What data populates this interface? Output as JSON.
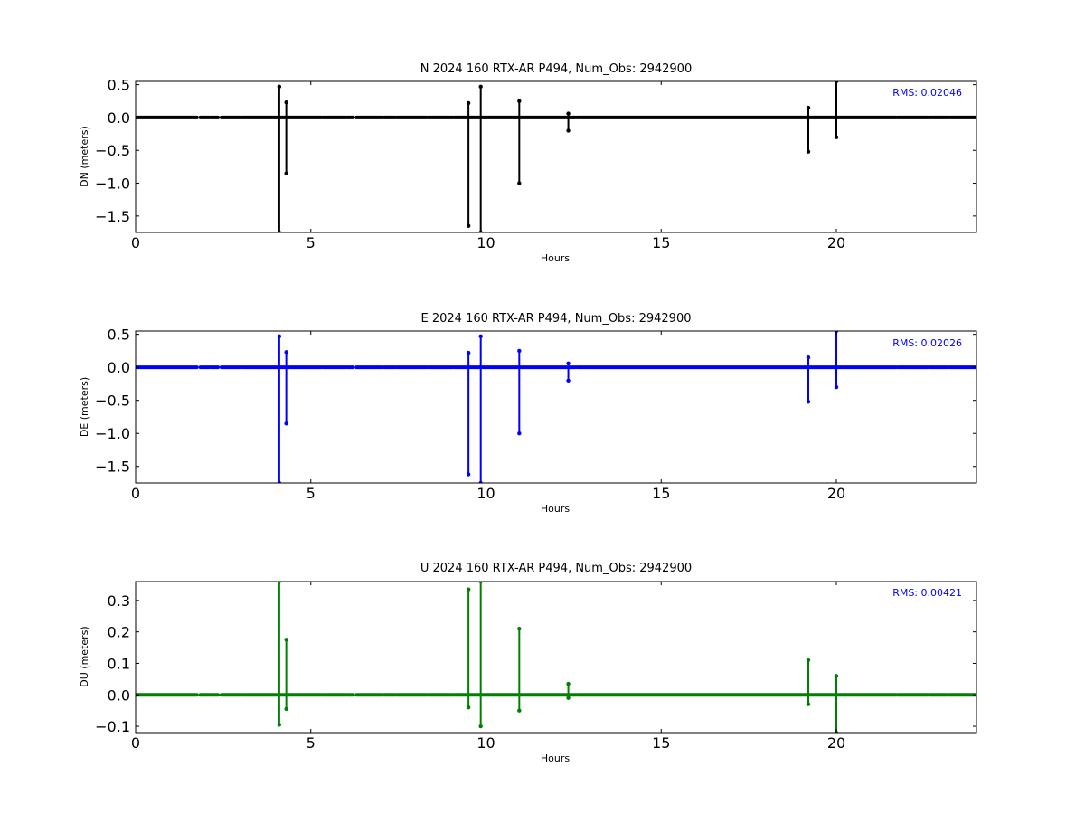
{
  "chart_data": [
    {
      "type": "line",
      "title": "N 2024 160 RTX-AR  P494, Num_Obs: 2942900",
      "xlabel": "Hours",
      "ylabel": "DN (meters)",
      "xlim": [
        0,
        24
      ],
      "ylim": [
        -1.75,
        0.55
      ],
      "xticks": [
        0,
        5,
        10,
        15,
        20
      ],
      "xtick_labels": [
        "0",
        "5",
        "10",
        "15",
        "20"
      ],
      "yticks": [
        0.5,
        0.0,
        -0.5,
        -1.0,
        -1.5
      ],
      "ytick_labels": [
        "0.5",
        "0.0",
        "−0.5",
        "−1.0",
        "−1.5"
      ],
      "rms_label": "RMS:  0.02046",
      "series_color": "#000000",
      "rms_color": "#0000ff",
      "baseline": 0.0,
      "data_gaps": [
        [
          1.75,
          1.85
        ],
        [
          2.1,
          2.15
        ],
        [
          2.35,
          2.45
        ],
        [
          3.0,
          3.05
        ],
        [
          5.3,
          5.35
        ],
        [
          6.0,
          6.05
        ],
        [
          6.2,
          6.3
        ],
        [
          7.05,
          7.1
        ],
        [
          7.4,
          7.45
        ],
        [
          8.3,
          8.35
        ],
        [
          9.05,
          9.1
        ],
        [
          12.55,
          12.6
        ],
        [
          21.7,
          21.75
        ],
        [
          22.6,
          22.65
        ],
        [
          23.2,
          23.25
        ]
      ],
      "spikes": [
        {
          "x": 4.1,
          "ymin": -1.75,
          "ymax": 0.47
        },
        {
          "x": 4.3,
          "ymin": -0.85,
          "ymax": 0.23
        },
        {
          "x": 9.5,
          "ymin": -1.65,
          "ymax": 0.22
        },
        {
          "x": 9.85,
          "ymin": -1.75,
          "ymax": 0.47
        },
        {
          "x": 10.95,
          "ymin": -1.0,
          "ymax": 0.25
        },
        {
          "x": 12.35,
          "ymin": -0.2,
          "ymax": 0.06
        },
        {
          "x": 19.2,
          "ymin": -0.52,
          "ymax": 0.15
        },
        {
          "x": 20.0,
          "ymin": -0.3,
          "ymax": 0.55
        }
      ]
    },
    {
      "type": "line",
      "title": "E 2024 160 RTX-AR  P494, Num_Obs: 2942900",
      "xlabel": "Hours",
      "ylabel": "DE (meters)",
      "xlim": [
        0,
        24
      ],
      "ylim": [
        -1.75,
        0.55
      ],
      "xticks": [
        0,
        5,
        10,
        15,
        20
      ],
      "xtick_labels": [
        "0",
        "5",
        "10",
        "15",
        "20"
      ],
      "yticks": [
        0.5,
        0.0,
        -0.5,
        -1.0,
        -1.5
      ],
      "ytick_labels": [
        "0.5",
        "0.0",
        "−0.5",
        "−1.0",
        "−1.5"
      ],
      "rms_label": "RMS:  0.02026",
      "series_color": "#0000ff",
      "rms_color": "#0000ff",
      "baseline": 0.0,
      "data_gaps": [
        [
          1.75,
          1.85
        ],
        [
          2.1,
          2.15
        ],
        [
          2.35,
          2.45
        ],
        [
          3.0,
          3.05
        ],
        [
          5.3,
          5.35
        ],
        [
          6.0,
          6.05
        ],
        [
          6.2,
          6.3
        ],
        [
          7.05,
          7.1
        ],
        [
          7.4,
          7.45
        ],
        [
          8.3,
          8.35
        ],
        [
          9.05,
          9.1
        ],
        [
          12.55,
          12.6
        ],
        [
          21.7,
          21.75
        ],
        [
          22.6,
          22.65
        ],
        [
          23.2,
          23.25
        ]
      ],
      "spikes": [
        {
          "x": 4.1,
          "ymin": -1.75,
          "ymax": 0.47
        },
        {
          "x": 4.3,
          "ymin": -0.85,
          "ymax": 0.23
        },
        {
          "x": 9.5,
          "ymin": -1.62,
          "ymax": 0.22
        },
        {
          "x": 9.85,
          "ymin": -1.75,
          "ymax": 0.47
        },
        {
          "x": 10.95,
          "ymin": -1.0,
          "ymax": 0.25
        },
        {
          "x": 12.35,
          "ymin": -0.2,
          "ymax": 0.06
        },
        {
          "x": 19.2,
          "ymin": -0.52,
          "ymax": 0.15
        },
        {
          "x": 20.0,
          "ymin": -0.3,
          "ymax": 0.55
        }
      ]
    },
    {
      "type": "line",
      "title": "U 2024 160 RTX-AR  P494, Num_Obs: 2942900",
      "xlabel": "Hours",
      "ylabel": "DU (meters)",
      "xlim": [
        0,
        24
      ],
      "ylim": [
        -0.12,
        0.36
      ],
      "xticks": [
        0,
        5,
        10,
        15,
        20
      ],
      "xtick_labels": [
        "0",
        "5",
        "10",
        "15",
        "20"
      ],
      "yticks": [
        0.3,
        0.2,
        0.1,
        0.0,
        -0.1
      ],
      "ytick_labels": [
        "0.3",
        "0.2",
        "0.1",
        "0.0",
        "−0.1"
      ],
      "rms_label": "RMS:  0.00421",
      "series_color": "#008000",
      "rms_color": "#0000ff",
      "baseline": 0.0,
      "data_gaps": [
        [
          1.75,
          1.85
        ],
        [
          2.1,
          2.15
        ],
        [
          2.35,
          2.45
        ],
        [
          3.0,
          3.05
        ],
        [
          5.3,
          5.35
        ],
        [
          6.0,
          6.05
        ],
        [
          6.2,
          6.3
        ],
        [
          7.05,
          7.1
        ],
        [
          7.4,
          7.45
        ],
        [
          8.3,
          8.35
        ],
        [
          9.05,
          9.1
        ],
        [
          12.55,
          12.6
        ],
        [
          21.7,
          21.75
        ],
        [
          22.6,
          22.65
        ],
        [
          23.2,
          23.25
        ]
      ],
      "spikes": [
        {
          "x": 4.1,
          "ymin": -0.095,
          "ymax": 0.36
        },
        {
          "x": 4.3,
          "ymin": -0.045,
          "ymax": 0.175
        },
        {
          "x": 9.5,
          "ymin": -0.04,
          "ymax": 0.335
        },
        {
          "x": 9.85,
          "ymin": -0.1,
          "ymax": 0.36
        },
        {
          "x": 10.95,
          "ymin": -0.05,
          "ymax": 0.21
        },
        {
          "x": 12.35,
          "ymin": -0.01,
          "ymax": 0.035
        },
        {
          "x": 19.2,
          "ymin": -0.03,
          "ymax": 0.11
        },
        {
          "x": 20.0,
          "ymin": -0.12,
          "ymax": 0.06
        }
      ]
    }
  ]
}
